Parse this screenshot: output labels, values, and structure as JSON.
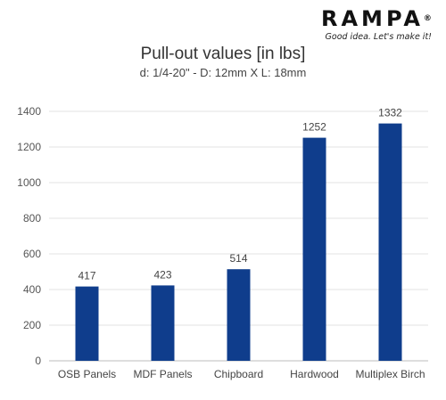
{
  "logo": {
    "wordmark": "RAMPA",
    "registered": "®",
    "tagline": "Good idea. Let's make it!"
  },
  "chart_data": {
    "type": "bar",
    "title": "Pull-out values [in lbs]",
    "subtitle": "d: 1/4-20\" - D: 12mm X L: 18mm",
    "categories": [
      "OSB Panels",
      "MDF Panels",
      "Chipboard",
      "Hardwood",
      "Multiplex Birch"
    ],
    "values": [
      417,
      423,
      514,
      1252,
      1332
    ],
    "data_labels": [
      "417",
      "423",
      "514",
      "1252",
      "1332"
    ],
    "y_ticks": [
      "0",
      "200",
      "400",
      "600",
      "800",
      "1000",
      "1200",
      "1400"
    ],
    "ylim": [
      0,
      1400
    ],
    "grid": true,
    "bar_color": "#0f3d8c",
    "legend": "none"
  }
}
